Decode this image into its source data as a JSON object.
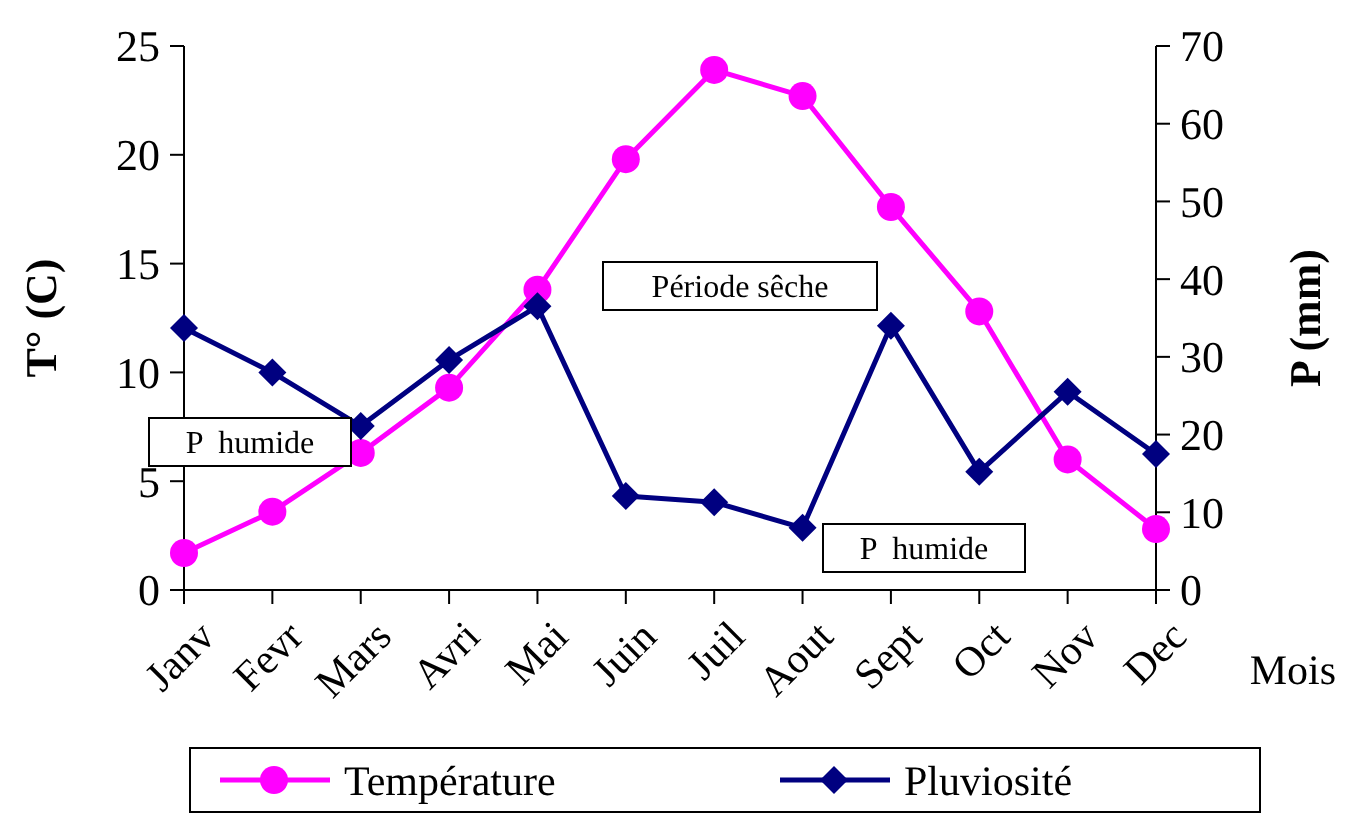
{
  "chart_data": {
    "type": "line",
    "categories": [
      "Janv",
      "Fevr",
      "Mars",
      "Avri",
      "Mai",
      "Juin",
      "Juil",
      "Aout",
      "Sept",
      "Oct",
      "Nov",
      "Dec"
    ],
    "xlabel": "Mois",
    "ylabel": "T° (C)",
    "y2label": "P (mm)",
    "ylim": [
      0,
      25
    ],
    "yticks": [
      0,
      5,
      10,
      15,
      20,
      25
    ],
    "y2lim": [
      0,
      70
    ],
    "y2ticks": [
      0,
      10,
      20,
      30,
      40,
      50,
      60,
      70
    ],
    "series": [
      {
        "name": "Température",
        "color": "#ff00ff",
        "marker": "circle",
        "values": [
          1.7,
          3.6,
          6.3,
          9.3,
          13.8,
          19.8,
          23.9,
          22.7,
          17.6,
          12.8,
          6.0,
          2.8
        ]
      },
      {
        "name": "Pluviosité",
        "color": "#000080",
        "marker": "diamond",
        "axis": "y2",
        "values": [
          33.7,
          28,
          21.1,
          29.6,
          36.5,
          12.1,
          11.3,
          8.0,
          34,
          15.2,
          25.5,
          17.5
        ]
      }
    ],
    "annotations": [
      "P  humide",
      "Période sêche",
      "P  humide"
    ],
    "legend": "bottom",
    "grid": false
  }
}
